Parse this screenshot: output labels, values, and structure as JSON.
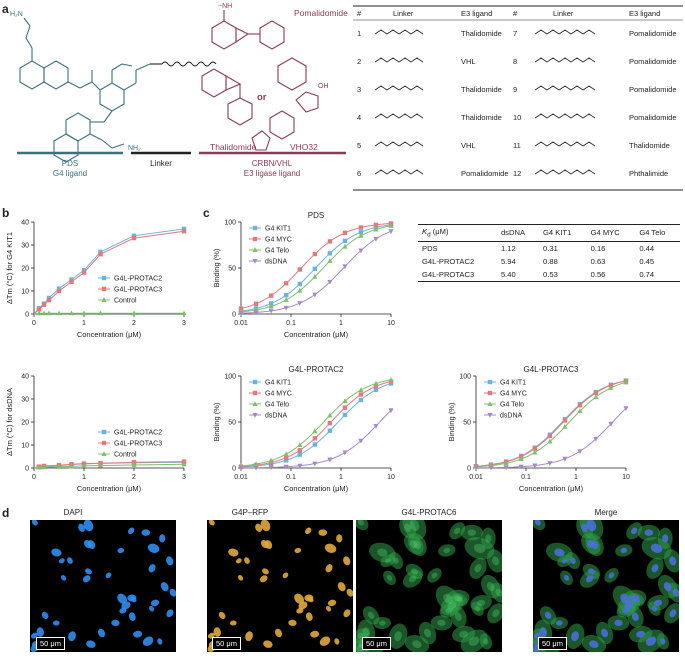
{
  "panels": {
    "a": "a",
    "b": "b",
    "c": "c",
    "d": "d"
  },
  "panel_a": {
    "labels": {
      "pds": "PDS",
      "g4_ligand": "G4 ligand",
      "linker": "Linker",
      "crbn_vhl": "CRBN/VHL",
      "e3_ligase_ligand": "E3 ligase ligand",
      "pomalidomide": "Pomalidomide",
      "thalidomide": "Thalidomide",
      "vho32": "VHO32",
      "or": "or",
      "nh2_top": "H₂N",
      "nh2_bottom": "NH₂",
      "oh": "OH"
    },
    "colors": {
      "pds": "#3d6f82",
      "linker": "#222222",
      "e3": "#8a3b57"
    },
    "table": {
      "headers": [
        "#",
        "Linker",
        "E3 ligand",
        "#",
        "Linker",
        "E3 ligand"
      ],
      "rows": [
        {
          "n1": "1",
          "e1": "Thalidomide",
          "n2": "7",
          "e2": "Pomalidomide"
        },
        {
          "n1": "2",
          "e1": "VHL",
          "n2": "8",
          "e2": "Pomalidomide"
        },
        {
          "n1": "3",
          "e1": "Thalidomide",
          "n2": "9",
          "e2": "Pomalidomide"
        },
        {
          "n1": "4",
          "e1": "Thalidomide",
          "n2": "10",
          "e2": "Pomalidomide"
        },
        {
          "n1": "5",
          "e1": "VHL",
          "n2": "11",
          "e2": "Thalidomide"
        },
        {
          "n1": "6",
          "e1": "Pomalidomide",
          "n2": "12",
          "e2": "Phthalimide"
        }
      ]
    }
  },
  "chart_data": [
    {
      "id": "b_top",
      "type": "scatter",
      "xlabel": "Concentration (μM)",
      "ylabel": "ΔTm (°C) for G4 KIT1",
      "xlim": [
        0,
        3
      ],
      "ylim": [
        0,
        40
      ],
      "xticks": [
        "0",
        "1",
        "2",
        "3"
      ],
      "yticks": [
        "0",
        "10",
        "20",
        "30",
        "40"
      ],
      "legend_position": "right",
      "series": [
        {
          "name": "G4L-PROTAC2",
          "color": "#6bb3dc",
          "marker": "square",
          "x": [
            0.1,
            0.2,
            0.3,
            0.5,
            0.75,
            1.0,
            1.33,
            2.0,
            3.0
          ],
          "y": [
            2.5,
            4.5,
            7,
            11,
            15,
            19,
            27,
            34,
            37
          ]
        },
        {
          "name": "G4L-PROTAC3",
          "color": "#e07a7f",
          "marker": "square",
          "x": [
            0.1,
            0.2,
            0.3,
            0.5,
            0.75,
            1.0,
            1.33,
            2.0,
            3.0
          ],
          "y": [
            2,
            4,
            6,
            10,
            14,
            18,
            26,
            33,
            36
          ]
        },
        {
          "name": "Control",
          "color": "#7fbf6a",
          "marker": "triangle",
          "x": [
            0.1,
            0.2,
            0.3,
            0.5,
            0.75,
            1.0,
            1.33,
            2.0,
            3.0
          ],
          "y": [
            0.3,
            0.3,
            0.3,
            0.3,
            0.3,
            0.3,
            0.3,
            0.3,
            0.3
          ]
        }
      ]
    },
    {
      "id": "b_bottom",
      "type": "scatter",
      "xlabel": "Concentration (μM)",
      "ylabel": "ΔTm (°C) for dsDNA",
      "xlim": [
        0,
        3
      ],
      "ylim": [
        0,
        40
      ],
      "xticks": [
        "0",
        "1",
        "2",
        "3"
      ],
      "yticks": [
        "0",
        "10",
        "20",
        "30",
        "40"
      ],
      "legend_position": "right",
      "series": [
        {
          "name": "G4L-PROTAC2",
          "color": "#6bb3dc",
          "marker": "square",
          "x": [
            0.1,
            0.2,
            0.5,
            0.75,
            1.0,
            1.33,
            2.0,
            3.0
          ],
          "y": [
            0.5,
            0.8,
            1,
            1.5,
            1.8,
            2,
            2.3,
            2.5
          ]
        },
        {
          "name": "G4L-PROTAC3",
          "color": "#e07a7f",
          "marker": "square",
          "x": [
            0.1,
            0.2,
            0.5,
            0.75,
            1.0,
            1.33,
            2.0,
            3.0
          ],
          "y": [
            0.6,
            0.9,
            1.2,
            1.6,
            1.9,
            2.1,
            2.5,
            2.8
          ]
        },
        {
          "name": "Control",
          "color": "#7fbf6a",
          "marker": "triangle",
          "x": [
            0.1,
            0.2,
            0.5,
            0.75,
            1.0,
            1.33,
            2.0,
            3.0
          ],
          "y": [
            0.2,
            0.3,
            0.5,
            0.7,
            0.9,
            1.1,
            1.3,
            1.6
          ]
        }
      ]
    },
    {
      "id": "c_pds",
      "type": "line",
      "title": "PDS",
      "xscale": "log",
      "xlabel": "Concentration (μM)",
      "ylabel": "Binding (%)",
      "xlim": [
        0.01,
        10
      ],
      "ylim": [
        0,
        100
      ],
      "xticks": [
        "0.01",
        "0.1",
        "1",
        "10"
      ],
      "yticks": [
        "0",
        "50",
        "100"
      ],
      "legend_position": "top-left",
      "series": [
        {
          "name": "G4 KIT1",
          "color": "#6bb3dc",
          "marker": "square",
          "kd": 0.31
        },
        {
          "name": "G4 MYC",
          "color": "#e07a7f",
          "marker": "square",
          "kd": 0.16
        },
        {
          "name": "G4 Telo",
          "color": "#7fbf6a",
          "marker": "triangle",
          "kd": 0.44
        },
        {
          "name": "dsDNA",
          "color": "#a68ac4",
          "marker": "triangle-down",
          "kd": 1.12
        }
      ]
    },
    {
      "id": "c_protac2",
      "type": "line",
      "title": "G4L-PROTAC2",
      "xscale": "log",
      "xlabel": "Concentration (μM)",
      "ylabel": "Binding (%)",
      "xlim": [
        0.01,
        10
      ],
      "ylim": [
        0,
        100
      ],
      "xticks": [
        "0.01",
        "0.1",
        "1",
        "10"
      ],
      "yticks": [
        "0",
        "50",
        "100"
      ],
      "legend_position": "top-left",
      "series": [
        {
          "name": "G4 KIT1",
          "color": "#6bb3dc",
          "marker": "square",
          "kd": 0.88
        },
        {
          "name": "G4 MYC",
          "color": "#e07a7f",
          "marker": "square",
          "kd": 0.63
        },
        {
          "name": "G4 Telo",
          "color": "#7fbf6a",
          "marker": "triangle",
          "kd": 0.45
        },
        {
          "name": "dsDNA",
          "color": "#a68ac4",
          "marker": "triangle-down",
          "kd": 5.94
        }
      ]
    },
    {
      "id": "c_protac3",
      "type": "line",
      "title": "G4L-PROTAC3",
      "xscale": "log",
      "xlabel": "Concentration (μM)",
      "ylabel": "Binding (%)",
      "xlim": [
        0.01,
        10
      ],
      "ylim": [
        0,
        100
      ],
      "xticks": [
        "0.01",
        "0.1",
        "1",
        "10"
      ],
      "yticks": [
        "0",
        "50",
        "100"
      ],
      "legend_position": "top-left",
      "series": [
        {
          "name": "G4 KIT1",
          "color": "#6bb3dc",
          "marker": "square",
          "kd": 0.53
        },
        {
          "name": "G4 MYC",
          "color": "#e07a7f",
          "marker": "square",
          "kd": 0.56
        },
        {
          "name": "G4 Telo",
          "color": "#7fbf6a",
          "marker": "triangle",
          "kd": 0.74
        },
        {
          "name": "dsDNA",
          "color": "#a68ac4",
          "marker": "triangle-down",
          "kd": 5.4
        }
      ]
    },
    {
      "id": "c_kd_table",
      "type": "table",
      "columns": [
        "Kd (μM)",
        "dsDNA",
        "G4 KIT1",
        "G4 MYC",
        "G4 Telo"
      ],
      "rows": [
        [
          "PDS",
          "1.12",
          "0.31",
          "0.16",
          "0.44"
        ],
        [
          "G4L-PROTAC2",
          "5.94",
          "0.88",
          "0.63",
          "0.45"
        ],
        [
          "G4L-PROTAC3",
          "5.40",
          "0.53",
          "0.56",
          "0.74"
        ]
      ]
    }
  ],
  "kd_table": {
    "header": {
      "k": "K",
      "d": "d",
      "unit": " (μM)",
      "c1": "dsDNA",
      "c2": "G4 KIT1",
      "c3": "G4 MYC",
      "c4": "G4 Telo"
    },
    "rows": [
      {
        "name": "PDS",
        "v1": "1.12",
        "v2": "0.31",
        "v3": "0.16",
        "v4": "0.44"
      },
      {
        "name": "G4L-PROTAC2",
        "v1": "5.94",
        "v2": "0.88",
        "v3": "0.63",
        "v4": "0.45"
      },
      {
        "name": "G4L-PROTAC3",
        "v1": "5.40",
        "v2": "0.53",
        "v3": "0.56",
        "v4": "0.74"
      }
    ]
  },
  "panel_d": {
    "images": [
      {
        "label": "DAPI",
        "scale": "50 μm",
        "color": "#2f8ef0"
      },
      {
        "label": "G4P–RFP",
        "scale": "50 μm",
        "color": "#e0a83a"
      },
      {
        "label": "G4L-PROTAC6",
        "scale": "50 μm",
        "color": "#3fbf5a"
      },
      {
        "label": "Merge",
        "scale": "50 μm",
        "color": "#6aa0c8"
      }
    ]
  }
}
